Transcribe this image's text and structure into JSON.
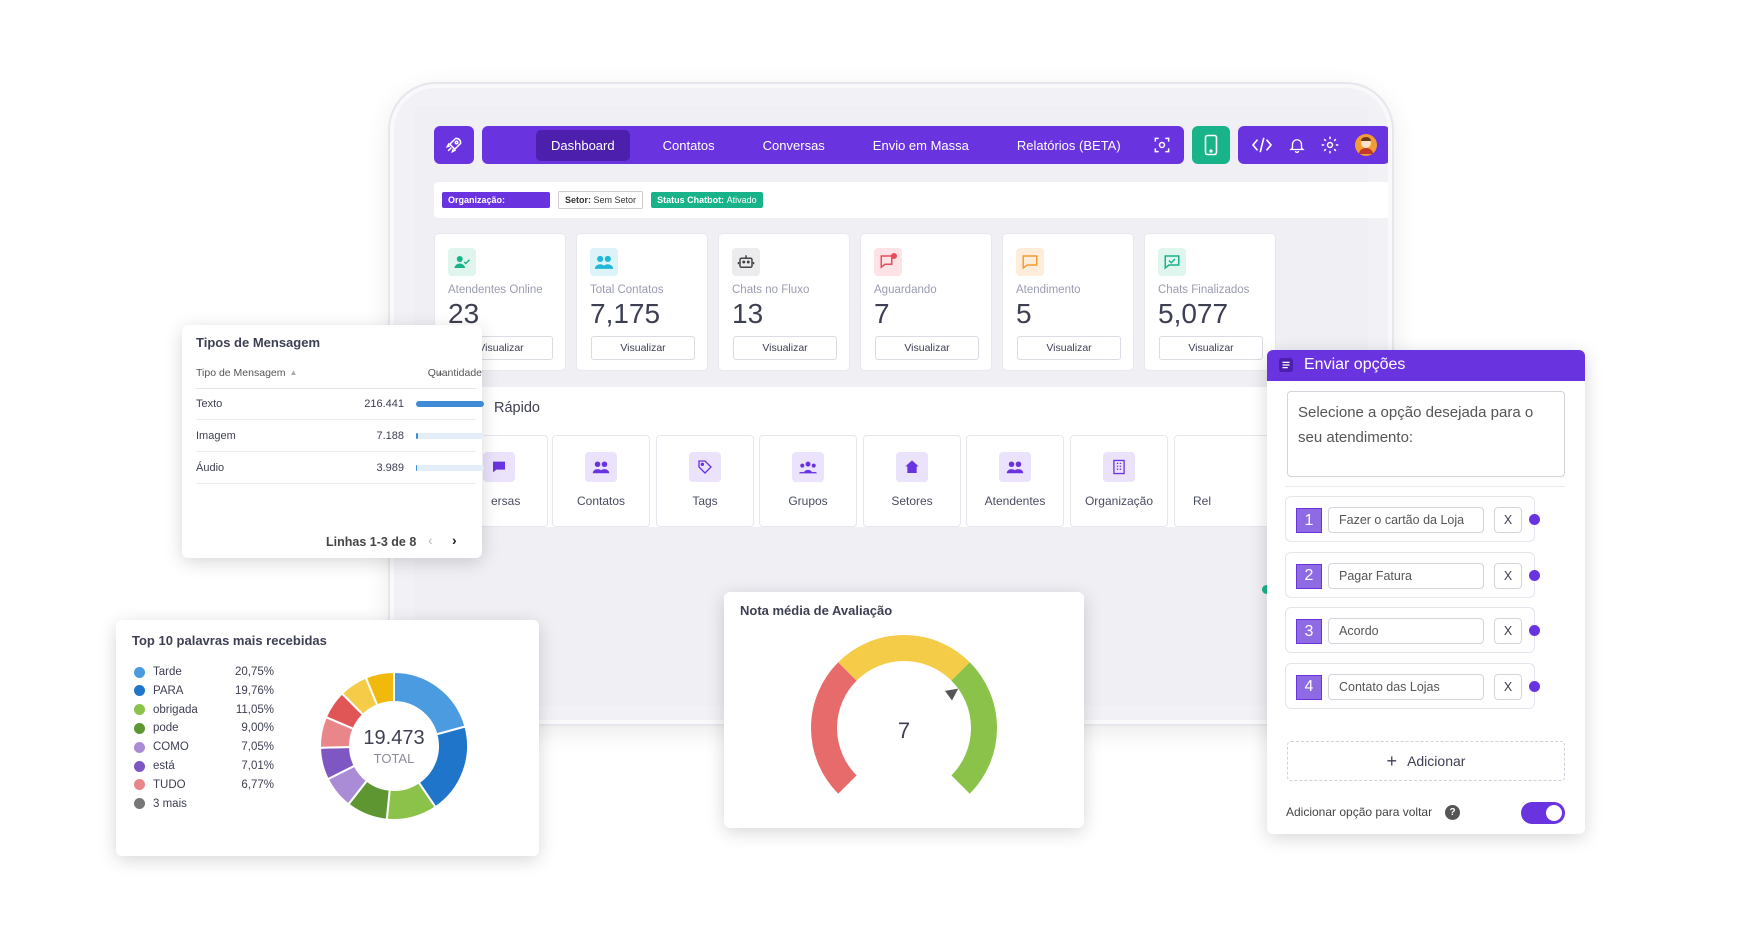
{
  "nav": {
    "items": [
      "Dashboard",
      "Contatos",
      "Conversas",
      "Envio em Massa",
      "Relatórios (BETA)"
    ],
    "active": "Dashboard"
  },
  "infobar": {
    "org_label": "Organização:",
    "setor_label": "Setor:",
    "setor_value": "Sem Setor",
    "status_label": "Status Chatbot:",
    "status_value": "Ativado"
  },
  "stats": [
    {
      "label": "Atendentes Online",
      "value": "23",
      "button": "Visualizar",
      "icon": "user-check-icon",
      "color": "#19b389"
    },
    {
      "label": "Total Contatos",
      "value": "7,175",
      "button": "Visualizar",
      "icon": "users-icon",
      "color": "#20b8d8"
    },
    {
      "label": "Chats no Fluxo",
      "value": "13",
      "button": "Visualizar",
      "icon": "robot-icon",
      "color": "#555"
    },
    {
      "label": "Aguardando",
      "value": "7",
      "button": "Visualizar",
      "icon": "chat-alert-icon",
      "color": "#e84c5a"
    },
    {
      "label": "Atendimento",
      "value": "5",
      "button": "Visualizar",
      "icon": "chat-icon",
      "color": "#f39c33"
    },
    {
      "label": "Chats Finalizados",
      "value": "5,077",
      "button": "Visualizar",
      "icon": "chat-check-icon",
      "color": "#19b389"
    }
  ],
  "quick": {
    "title": "Rápido",
    "tiles": [
      "ersas",
      "Contatos",
      "Tags",
      "Grupos",
      "Setores",
      "Atendentes",
      "Organização",
      "Rel"
    ]
  },
  "tipos": {
    "title": "Tipos de Mensagem",
    "col1": "Tipo de Mensagem",
    "col2": "Quantidade",
    "rows": [
      {
        "tipo": "Texto",
        "quantidade": "216.441",
        "fraction": 1.0
      },
      {
        "tipo": "Imagem",
        "quantidade": "7.188",
        "fraction": 0.033
      },
      {
        "tipo": "Áudio",
        "quantidade": "3.989",
        "fraction": 0.018
      }
    ],
    "pagination": "Linhas 1-3 de 8"
  },
  "top10": {
    "title": "Top 10 palavras mais recebidas",
    "total_value": "19.473",
    "total_label": "TOTAL"
  },
  "chart_data": [
    {
      "type": "pie",
      "title": "Top 10 palavras mais recebidas",
      "categories": [
        "Tarde",
        "PARA",
        "obrigada",
        "pode",
        "COMO",
        "está",
        "TUDO",
        "3 mais"
      ],
      "labels": [
        "20,75%",
        "19,76%",
        "11,05%",
        "9,00%",
        "7,05%",
        "7,01%",
        "6,77%",
        ""
      ],
      "values": [
        20.75,
        19.76,
        11.05,
        9.0,
        7.05,
        7.01,
        6.77,
        18.61
      ],
      "colors": [
        "#4a9be0",
        "#1f75c9",
        "#8bc34a",
        "#5e9632",
        "#a98bd6",
        "#7e57c2",
        "#e8868a",
        "#777777"
      ],
      "extra_slices": [
        {
          "value": 6.2,
          "color": "#e05656"
        },
        {
          "value": 6.2,
          "color": "#f5cc48"
        },
        {
          "value": 6.21,
          "color": "#f0b90b"
        }
      ],
      "total": "19.473"
    },
    {
      "type": "gauge",
      "title": "Nota média de Avaliação",
      "value": 7,
      "range": [
        0,
        10
      ],
      "colors": [
        "#e86b6b",
        "#f5cc48",
        "#8bc34a"
      ]
    }
  ],
  "nota": {
    "title": "Nota média de Avaliação",
    "value": "7"
  },
  "enviar": {
    "title": "Enviar opções",
    "message": "Selecione a opção desejada para o seu atendimento:",
    "options": [
      {
        "num": "1",
        "text": "Fazer o cartão da Loja",
        "remove": "X"
      },
      {
        "num": "2",
        "text": "Pagar Fatura",
        "remove": "X"
      },
      {
        "num": "3",
        "text": "Acordo",
        "remove": "X"
      },
      {
        "num": "4",
        "text": "Contato das Lojas",
        "remove": "X"
      }
    ],
    "add_label": "Adicionar",
    "back_label": "Adicionar opção para voltar",
    "back_enabled": true
  }
}
